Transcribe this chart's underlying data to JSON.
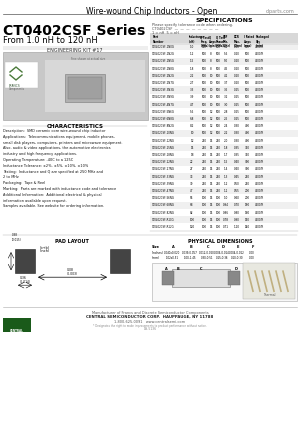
{
  "title_top": "Wire-wound Chip Inductors - Open",
  "website_top": "clparts.com",
  "series_title": "CT0402CSF Series",
  "series_subtitle": "From 1.0 nH to 120 nH",
  "eng_kit": "ENGINEERING KIT #17",
  "spec_title": "SPECIFICATIONS",
  "spec_note1": "Please specify tolerance code when ordering.",
  "spec_note2": "CT0402CSF     ___     ___ ___ ___ ___ ___ ___ ___",
  "spec_note3": "1 = nH  5 = nH",
  "col_headers": [
    "Part\nNumber",
    "Inductance\n(nH)",
    "Q Test\nFreq.\n(MHz)",
    "Q\nAmps\n(min)",
    "Q Test\nPhase\n(MHz)",
    "SRF\nMin.\n(GHz)",
    "DCR\nMax.\n(Ohm)",
    "I Rated\nAmps\n(max)",
    "Packaged\nQty\n(min)"
  ],
  "spec_rows": [
    [
      "CT0402CSF-1N0G",
      "1.0",
      "500",
      "8",
      "500",
      "6.2",
      "0.20",
      "500",
      "4000/R"
    ],
    [
      "CT0402CSF-1N2G",
      "1.2",
      "500",
      "8",
      "500",
      "5.6",
      "0.20",
      "500",
      "4000/R"
    ],
    [
      "CT0402CSF-1N5G",
      "1.5",
      "500",
      "8",
      "500",
      "5.0",
      "0.20",
      "500",
      "4000/R"
    ],
    [
      "CT0402CSF-1N8G",
      "1.8",
      "500",
      "8",
      "500",
      "4.5",
      "0.20",
      "500",
      "4000/R"
    ],
    [
      "CT0402CSF-2N2G",
      "2.2",
      "500",
      "10",
      "500",
      "4.1",
      "0.20",
      "500",
      "4000/R"
    ],
    [
      "CT0402CSF-2N7G",
      "2.7",
      "500",
      "10",
      "500",
      "3.7",
      "0.20",
      "500",
      "4000/R"
    ],
    [
      "CT0402CSF-3N3G",
      "3.3",
      "500",
      "10",
      "500",
      "3.5",
      "0.25",
      "500",
      "4000/R"
    ],
    [
      "CT0402CSF-3N9G",
      "3.9",
      "500",
      "10",
      "500",
      "3.2",
      "0.25",
      "500",
      "4000/R"
    ],
    [
      "CT0402CSF-4N7G",
      "4.7",
      "500",
      "10",
      "500",
      "3.0",
      "0.25",
      "500",
      "4000/R"
    ],
    [
      "CT0402CSF-5N6G",
      "5.6",
      "500",
      "12",
      "500",
      "2.8",
      "0.25",
      "500",
      "4000/R"
    ],
    [
      "CT0402CSF-6N8G",
      "6.8",
      "500",
      "12",
      "500",
      "2.5",
      "0.25",
      "500",
      "4000/R"
    ],
    [
      "CT0402CSF-8N2G",
      "8.2",
      "500",
      "12",
      "500",
      "2.4",
      "0.30",
      "400",
      "4000/R"
    ],
    [
      "CT0402CSF-10NG",
      "10",
      "500",
      "12",
      "500",
      "2.2",
      "0.30",
      "400",
      "4000/R"
    ],
    [
      "CT0402CSF-12NG",
      "12",
      "250",
      "15",
      "250",
      "2.0",
      "0.30",
      "400",
      "4000/R"
    ],
    [
      "CT0402CSF-15NG",
      "15",
      "250",
      "15",
      "250",
      "1.8",
      "0.35",
      "350",
      "4000/R"
    ],
    [
      "CT0402CSF-18NG",
      "18",
      "250",
      "15",
      "250",
      "1.7",
      "0.35",
      "350",
      "4000/R"
    ],
    [
      "CT0402CSF-22NG",
      "22",
      "250",
      "15",
      "250",
      "1.5",
      "0.40",
      "300",
      "4000/R"
    ],
    [
      "CT0402CSF-27NG",
      "27",
      "250",
      "15",
      "250",
      "1.4",
      "0.40",
      "300",
      "4000/R"
    ],
    [
      "CT0402CSF-33NG",
      "33",
      "250",
      "15",
      "250",
      "1.3",
      "0.45",
      "250",
      "4000/R"
    ],
    [
      "CT0402CSF-39NG",
      "39",
      "250",
      "15",
      "250",
      "1.2",
      "0.50",
      "250",
      "4000/R"
    ],
    [
      "CT0402CSF-47NG",
      "47",
      "250",
      "15",
      "250",
      "1.1",
      "0.55",
      "200",
      "4000/R"
    ],
    [
      "CT0402CSF-56NG",
      "56",
      "100",
      "15",
      "100",
      "1.0",
      "0.60",
      "200",
      "4000/R"
    ],
    [
      "CT0402CSF-68NG",
      "68",
      "100",
      "15",
      "100",
      "0.94",
      "0.70",
      "180",
      "4000/R"
    ],
    [
      "CT0402CSF-82NG",
      "82",
      "100",
      "15",
      "100",
      "0.86",
      "0.80",
      "160",
      "4000/R"
    ],
    [
      "CT0402CSF-R10G",
      "100",
      "100",
      "15",
      "100",
      "0.78",
      "0.90",
      "150",
      "4000/R"
    ],
    [
      "CT0402CSF-R12G",
      "120",
      "100",
      "15",
      "100",
      "0.71",
      "1.10",
      "140",
      "4000/R"
    ]
  ],
  "char_title": "CHARACTERISTICS",
  "char_lines": [
    "Description:  SMD ceramic core wire-wound chip inductor",
    "Applications:  Telecommunications equipment, mobile phones,",
    "small disk players, computers, printers and microwave equipment.",
    "Also, audio & video applications, the automotive electronics",
    "industry and high frequency applications.",
    "Operating Temperature: -40C to a 125C",
    "Inductance Tolerance: ±2%, ±5%, ±10%, ±10%",
    "Testing:  Inductance and Q are specified at 250 MHz and",
    "2 to MHz",
    "Packaging:  Tape & Reel",
    "Marking:  Parts are marked with inductance code and tolerance",
    "Additional Information:  Additional electrical & physical",
    "information available upon request.",
    "Samples available. See website for ordering information."
  ],
  "pad_title": "PAD LAYOUT",
  "phys_title": "PHYSICAL DIMENSIONS",
  "phys_size_label": "01005",
  "phys_col_headers": [
    "Size",
    "A",
    "B",
    "C",
    "D",
    "E",
    "F"
  ],
  "phys_row_inch": [
    "(inches)",
    "0.040x0.020",
    "0.039-0.057",
    "0.012-0.020",
    "0.006-0.014",
    "0.004-0.012",
    "0.00"
  ],
  "phys_row_mm": [
    "(mm)",
    "1.02x0.51",
    "1.00-1.45",
    "0.30-0.51",
    "0.15-0.36",
    "0.10-0.30",
    "0.00"
  ],
  "footer_line1": "Manufacturer of Francs and Discrete Semiconductor Components",
  "footer_line2": "CENTRAL SEMICONDUCTOR CORP.  HAUPPAUGE, NY 11788",
  "footer_line3": "1-800-625-0091   www.centralsemi.com",
  "footer_note": "* Designates the right to make improvements to product performance without notice.",
  "doc_number": "DS-5136",
  "bg_color": "#ffffff"
}
